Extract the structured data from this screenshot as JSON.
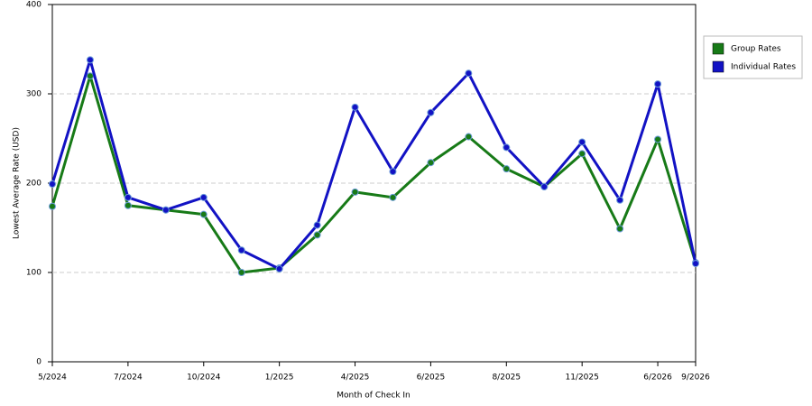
{
  "chart_data": {
    "type": "line",
    "x_label": "Month of Check In",
    "y_label": "Lowest Average Rate (USD)",
    "categories": [
      "5/2024",
      null,
      "7/2024",
      null,
      "10/2024",
      null,
      "1/2025",
      null,
      "4/2025",
      null,
      "6/2025",
      null,
      "8/2025",
      null,
      "11/2025",
      null,
      "6/2026",
      "9/2026"
    ],
    "series": [
      {
        "name": "Group Rates",
        "color": "#177a17",
        "values": [
          174,
          320,
          175,
          170,
          165,
          100,
          105,
          142,
          190,
          184,
          223,
          252,
          216,
          196,
          233,
          149,
          249,
          111
        ]
      },
      {
        "name": "Individual Rates",
        "color": "#1212c4",
        "values": [
          199,
          338,
          184,
          170,
          184,
          125,
          104,
          153,
          285,
          213,
          279,
          323,
          240,
          196,
          246,
          181,
          311,
          110
        ]
      }
    ],
    "ylim": [
      0,
      400
    ],
    "yticks": [
      0,
      100,
      200,
      300,
      400
    ],
    "grid": true,
    "legend": "top-right"
  }
}
